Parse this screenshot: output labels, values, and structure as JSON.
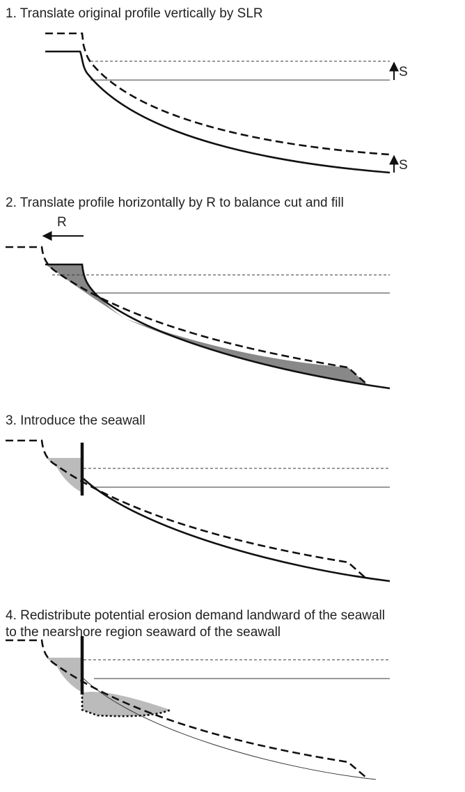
{
  "panels": [
    {
      "title": [
        "1. Translate original profile vertically by SLR"
      ],
      "labels": [
        "S",
        "S"
      ]
    },
    {
      "title": [
        "2. Translate profile horizontally by R to balance cut and fill"
      ],
      "labels": [
        "R"
      ]
    },
    {
      "title": [
        "3. Introduce the seawall"
      ],
      "labels": []
    },
    {
      "title": [
        "4. Redistribute potential erosion demand landward of the seawall",
        "to the nearshore region seaward of the seawall"
      ],
      "labels": []
    }
  ]
}
